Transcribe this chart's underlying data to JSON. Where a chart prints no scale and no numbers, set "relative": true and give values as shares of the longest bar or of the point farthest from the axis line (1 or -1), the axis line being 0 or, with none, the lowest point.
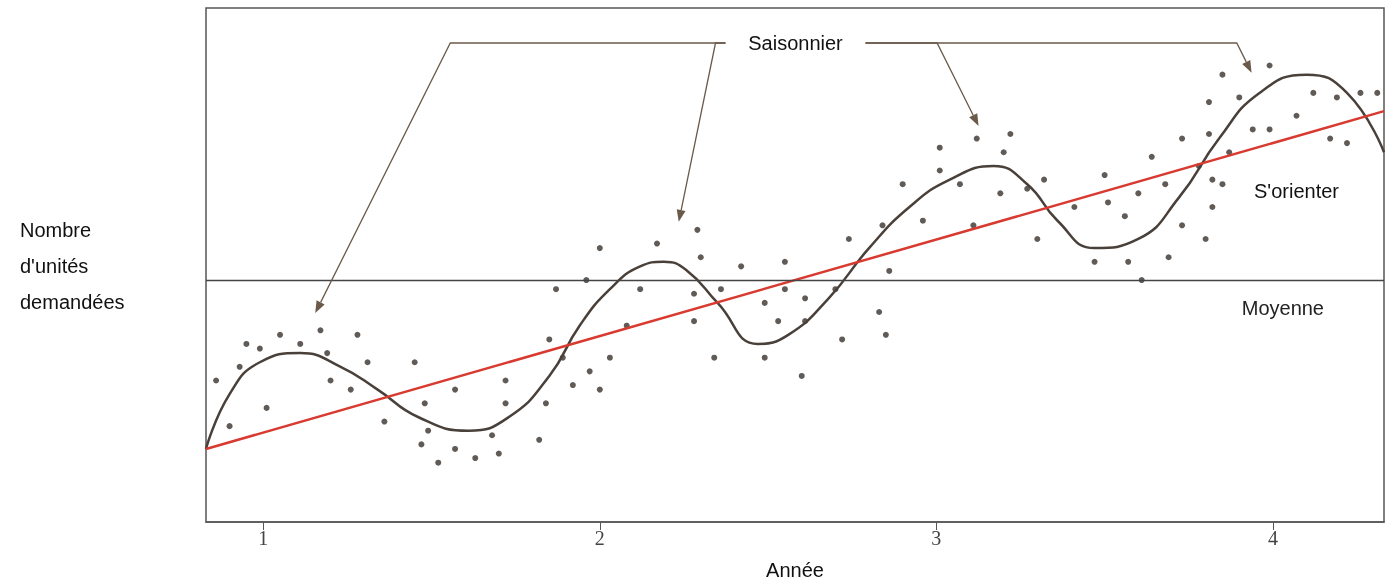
{
  "chart_data": {
    "type": "line",
    "relative": true,
    "xlabel": "Année",
    "ylabel": "Nombre d'unités demandées",
    "xlim": [
      0.83,
      4.33
    ],
    "xticks": [
      1,
      2,
      3,
      4
    ],
    "ref_lines": [
      {
        "axis": "y",
        "value": 0.53,
        "label": "Moyenne",
        "color": "#444444"
      }
    ],
    "series": [
      {
        "type": "scatter",
        "marker": "circle",
        "color": "#3a322d",
        "x": [
          0.86,
          0.9,
          0.93,
          0.95,
          0.99,
          1.01,
          1.05,
          1.11,
          1.17,
          1.19,
          1.2,
          1.26,
          1.28,
          1.31,
          1.36,
          1.45,
          1.48,
          1.49,
          1.47,
          1.52,
          1.57,
          1.57,
          1.63,
          1.68,
          1.7,
          1.72,
          1.72,
          1.82,
          1.84,
          1.85,
          1.87,
          1.89,
          1.92,
          1.96,
          1.97,
          2.0,
          2.0,
          2.03,
          2.08,
          2.12,
          2.17,
          2.28,
          2.29,
          2.3,
          2.28,
          2.34,
          2.36,
          2.42,
          2.49,
          2.49,
          2.53,
          2.55,
          2.55,
          2.6,
          2.61,
          2.61,
          2.7,
          2.72,
          2.74,
          2.83,
          2.84,
          2.85,
          2.86,
          2.9,
          2.96,
          3.01,
          3.01,
          3.07,
          3.12,
          3.11,
          3.19,
          3.2,
          3.22,
          3.27,
          3.32,
          3.3,
          3.41,
          3.47,
          3.5,
          3.51,
          3.56,
          3.57,
          3.6,
          3.61,
          3.64,
          3.69,
          3.68,
          3.73,
          3.73,
          3.78,
          3.8,
          3.81,
          3.81,
          3.82,
          3.82,
          3.85,
          3.87,
          3.85,
          3.9,
          3.94,
          3.99,
          3.99,
          4.07,
          4.12,
          4.17,
          4.19,
          4.22,
          4.26,
          4.31
        ],
        "values": [
          0.31,
          0.21,
          0.34,
          0.39,
          0.38,
          0.25,
          0.41,
          0.39,
          0.42,
          0.37,
          0.31,
          0.29,
          0.41,
          0.35,
          0.22,
          0.35,
          0.26,
          0.2,
          0.17,
          0.13,
          0.29,
          0.16,
          0.14,
          0.19,
          0.15,
          0.31,
          0.26,
          0.18,
          0.26,
          0.4,
          0.51,
          0.36,
          0.3,
          0.53,
          0.33,
          0.6,
          0.29,
          0.36,
          0.43,
          0.51,
          0.61,
          0.44,
          0.64,
          0.58,
          0.5,
          0.36,
          0.51,
          0.56,
          0.48,
          0.36,
          0.44,
          0.51,
          0.57,
          0.32,
          0.44,
          0.49,
          0.51,
          0.4,
          0.62,
          0.46,
          0.65,
          0.41,
          0.55,
          0.74,
          0.66,
          0.77,
          0.82,
          0.74,
          0.84,
          0.65,
          0.72,
          0.81,
          0.85,
          0.73,
          0.75,
          0.62,
          0.69,
          0.57,
          0.76,
          0.7,
          0.67,
          0.57,
          0.72,
          0.53,
          0.8,
          0.58,
          0.74,
          0.65,
          0.84,
          0.78,
          0.62,
          0.92,
          0.85,
          0.69,
          0.75,
          0.74,
          0.81,
          0.98,
          0.93,
          0.86,
          1.0,
          0.86,
          0.89,
          0.94,
          0.84,
          0.93,
          0.83,
          0.94,
          0.94
        ]
      },
      {
        "type": "line",
        "name": "Saisonnier",
        "color": "#4a403a",
        "x": [
          0.83,
          0.9,
          0.99,
          1.11,
          1.23,
          1.34,
          1.46,
          1.61,
          1.73,
          1.85,
          1.94,
          2.03,
          2.12,
          2.19,
          2.26,
          2.35,
          2.47,
          2.56,
          2.68,
          2.8,
          2.92,
          3.04,
          3.17,
          3.27,
          3.36,
          3.47,
          3.6,
          3.72,
          3.84,
          3.96,
          4.1,
          4.22,
          4.33
        ],
        "values": [
          0.16,
          0.28,
          0.35,
          0.37,
          0.34,
          0.29,
          0.23,
          0.2,
          0.23,
          0.32,
          0.43,
          0.51,
          0.56,
          0.57,
          0.55,
          0.48,
          0.39,
          0.41,
          0.49,
          0.6,
          0.69,
          0.75,
          0.78,
          0.74,
          0.66,
          0.6,
          0.62,
          0.71,
          0.84,
          0.94,
          0.98,
          0.94,
          0.81
        ]
      },
      {
        "type": "line",
        "name": "S'orienter",
        "color": "#d83a30",
        "x": [
          0.83,
          4.33
        ],
        "values": [
          0.16,
          0.9
        ]
      }
    ]
  }
}
